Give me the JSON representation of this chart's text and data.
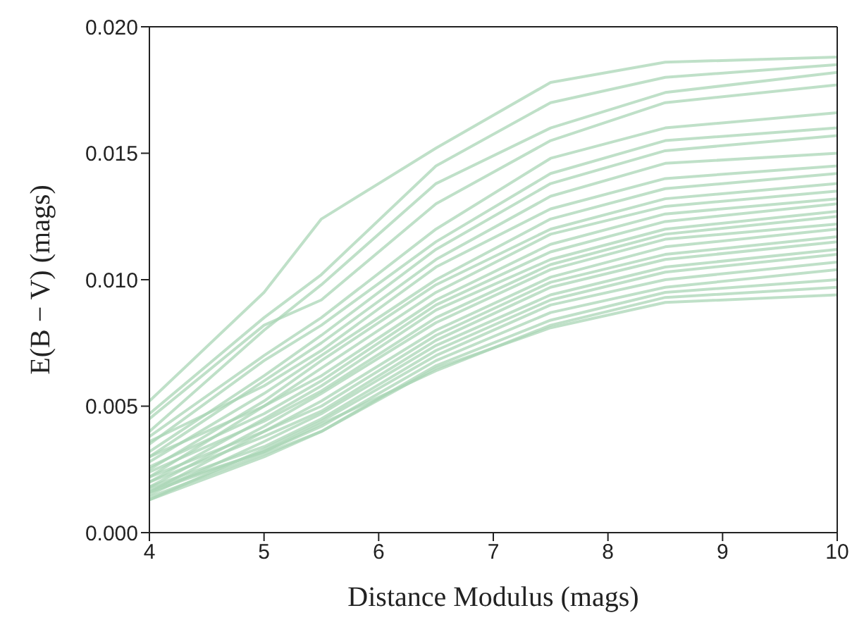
{
  "chart_data": {
    "type": "line",
    "xlabel": "Distance Modulus (mags)",
    "ylabel": "E(B − V) (mags)",
    "x": [
      4,
      5,
      5.5,
      6.5,
      7.5,
      8.5,
      10
    ],
    "xlim": [
      4,
      10
    ],
    "xticks": [
      4,
      5,
      6,
      7,
      8,
      9,
      10
    ],
    "ylim": [
      0,
      0.02
    ],
    "yticks": [
      {
        "value": 0,
        "label": "0.000"
      },
      {
        "value": 0.005,
        "label": "0.005"
      },
      {
        "value": 0.01,
        "label": "0.010"
      },
      {
        "value": 0.015,
        "label": "0.015"
      },
      {
        "value": 0.02,
        "label": "0.020"
      }
    ],
    "grid": false,
    "marker": "none",
    "line_style": "solid",
    "series": [
      {
        "color": "#a9d6b6",
        "values": [
          0.0052,
          0.0095,
          0.0124,
          0.0152,
          0.0178,
          0.0186,
          0.0188
        ]
      },
      {
        "color": "#a9d6b6",
        "values": [
          0.0047,
          0.0085,
          0.0102,
          0.0145,
          0.017,
          0.018,
          0.0185
        ]
      },
      {
        "color": "#a9d6b6",
        "values": [
          0.004,
          0.008,
          0.0098,
          0.0138,
          0.016,
          0.0174,
          0.0182
        ]
      },
      {
        "color": "#a9d6b6",
        "values": [
          0.0045,
          0.0082,
          0.0092,
          0.013,
          0.0155,
          0.017,
          0.0177
        ]
      },
      {
        "color": "#a9d6b6",
        "values": [
          0.0038,
          0.007,
          0.0085,
          0.012,
          0.0148,
          0.016,
          0.0166
        ]
      },
      {
        "color": "#a9d6b6",
        "values": [
          0.0035,
          0.0068,
          0.0082,
          0.0115,
          0.0142,
          0.0155,
          0.016
        ]
      },
      {
        "color": "#a9d6b6",
        "values": [
          0.0032,
          0.0062,
          0.0078,
          0.0112,
          0.0138,
          0.0151,
          0.0157
        ]
      },
      {
        "color": "#a9d6b6",
        "values": [
          0.003,
          0.006,
          0.0075,
          0.0108,
          0.0133,
          0.0146,
          0.015
        ]
      },
      {
        "color": "#a9d6b6",
        "values": [
          0.0036,
          0.0058,
          0.0072,
          0.0105,
          0.0128,
          0.014,
          0.0145
        ]
      },
      {
        "color": "#a9d6b6",
        "values": [
          0.0028,
          0.0055,
          0.007,
          0.01,
          0.0124,
          0.0136,
          0.0142
        ]
      },
      {
        "color": "#a9d6b6",
        "values": [
          0.0025,
          0.0052,
          0.0068,
          0.0098,
          0.012,
          0.0132,
          0.0138
        ]
      },
      {
        "color": "#a9d6b6",
        "values": [
          0.003,
          0.005,
          0.0065,
          0.0095,
          0.0118,
          0.0129,
          0.0135
        ]
      },
      {
        "color": "#a9d6b6",
        "values": [
          0.0022,
          0.005,
          0.0062,
          0.0092,
          0.0114,
          0.0126,
          0.0132
        ]
      },
      {
        "color": "#a9d6b6",
        "values": [
          0.0026,
          0.0047,
          0.006,
          0.009,
          0.0111,
          0.0123,
          0.013
        ]
      },
      {
        "color": "#a9d6b6",
        "values": [
          0.002,
          0.0045,
          0.0058,
          0.0088,
          0.0108,
          0.012,
          0.0127
        ]
      },
      {
        "color": "#a9d6b6",
        "values": [
          0.0024,
          0.0044,
          0.0056,
          0.0085,
          0.0106,
          0.0118,
          0.0125
        ]
      },
      {
        "color": "#a9d6b6",
        "values": [
          0.0018,
          0.0042,
          0.0055,
          0.0083,
          0.0104,
          0.0116,
          0.0122
        ]
      },
      {
        "color": "#a9d6b6",
        "values": [
          0.0022,
          0.004,
          0.0052,
          0.008,
          0.0101,
          0.0113,
          0.012
        ]
      },
      {
        "color": "#a9d6b6",
        "values": [
          0.0016,
          0.004,
          0.005,
          0.0078,
          0.0099,
          0.011,
          0.0117
        ]
      },
      {
        "color": "#a9d6b6",
        "values": [
          0.002,
          0.0038,
          0.0048,
          0.0076,
          0.0097,
          0.0108,
          0.0115
        ]
      },
      {
        "color": "#a9d6b6",
        "values": [
          0.0015,
          0.0036,
          0.0047,
          0.0074,
          0.0094,
          0.0105,
          0.0112
        ]
      },
      {
        "color": "#a9d6b6",
        "values": [
          0.0018,
          0.0034,
          0.0045,
          0.0072,
          0.0092,
          0.0103,
          0.011
        ]
      },
      {
        "color": "#a9d6b6",
        "values": [
          0.0013,
          0.0033,
          0.0044,
          0.007,
          0.009,
          0.01,
          0.0107
        ]
      },
      {
        "color": "#a9d6b6",
        "values": [
          0.0016,
          0.0032,
          0.0042,
          0.0068,
          0.0087,
          0.0097,
          0.0104
        ]
      },
      {
        "color": "#a9d6b6",
        "values": [
          0.0014,
          0.0031,
          0.004,
          0.0066,
          0.0084,
          0.0095,
          0.01
        ]
      },
      {
        "color": "#a9d6b6",
        "values": [
          0.0017,
          0.0032,
          0.0043,
          0.0064,
          0.0082,
          0.0093,
          0.0097
        ]
      },
      {
        "color": "#a9d6b6",
        "values": [
          0.0013,
          0.003,
          0.004,
          0.0065,
          0.0081,
          0.0091,
          0.0094
        ]
      }
    ]
  }
}
